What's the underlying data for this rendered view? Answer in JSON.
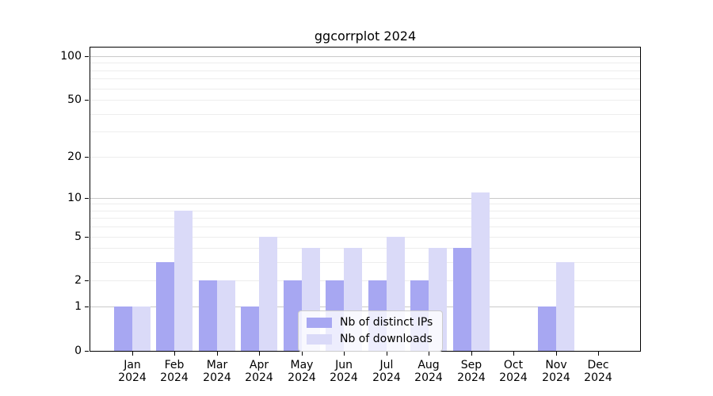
{
  "chart_data": {
    "type": "bar",
    "title": "ggcorrplot 2024",
    "categories": [
      "Jan",
      "Feb",
      "Mar",
      "Apr",
      "May",
      "Jun",
      "Jul",
      "Aug",
      "Sep",
      "Oct",
      "Nov",
      "Dec"
    ],
    "year_label": "2024",
    "series": [
      {
        "name": "Nb of distinct IPs",
        "color": "#a7a7f2",
        "values": [
          1,
          3,
          2,
          1,
          2,
          2,
          2,
          2,
          4,
          0,
          1,
          0
        ]
      },
      {
        "name": "Nb of downloads",
        "color": "#dadaf8",
        "values": [
          1,
          8,
          2,
          5,
          4,
          4,
          5,
          4,
          11,
          0,
          3,
          0
        ]
      }
    ],
    "xlabel": "",
    "ylabel": "",
    "yscale": "log1p",
    "ylim": [
      0,
      116
    ],
    "yticks": [
      0,
      1,
      2,
      5,
      10,
      20,
      50,
      100
    ],
    "major_gridlines": [
      1,
      10,
      100
    ],
    "minor_gridlines": [
      2,
      3,
      4,
      5,
      6,
      7,
      8,
      9,
      20,
      30,
      40,
      50,
      60,
      70,
      80,
      90
    ],
    "grid": true,
    "legend_position": "lower center",
    "colors": {
      "major_grid": "#c9c9c9",
      "minor_grid": "#ededed",
      "axis_frame": "#000000",
      "background": "#ffffff"
    }
  }
}
